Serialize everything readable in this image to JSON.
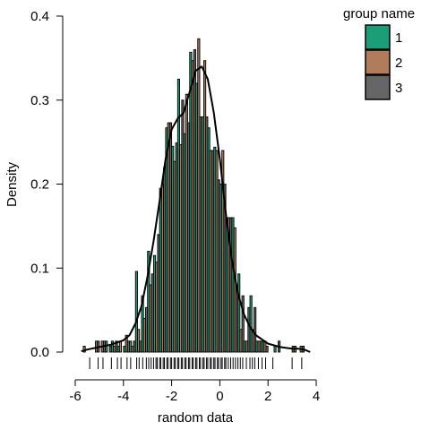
{
  "chart_data": {
    "type": "bar",
    "subtype": "histogram with density curve and rug",
    "title": "",
    "xlabel": "random data",
    "ylabel": "Density",
    "xlim": [
      -6,
      4
    ],
    "ylim": [
      0,
      0.4
    ],
    "xticks": [
      -6,
      -4,
      -2,
      0,
      2,
      4
    ],
    "yticks": [
      0.0,
      0.1,
      0.2,
      0.3,
      0.4
    ],
    "ytick_labels": [
      "0.0",
      "0.1",
      "0.2",
      "0.3",
      "0.4"
    ],
    "grid": false,
    "legend": {
      "title": "group name",
      "placement": "top-right",
      "entries": [
        {
          "label": "1",
          "color": "#1b9e77"
        },
        {
          "label": "2",
          "color": "#b07c5c"
        },
        {
          "label": "3",
          "color": "#666666"
        }
      ]
    },
    "bins": [
      {
        "x0": -5.75,
        "x1": -5.5,
        "values": [
          0.0,
          0.007,
          0.0
        ]
      },
      {
        "x0": -5.5,
        "x1": -5.25,
        "values": [
          0.0,
          0.0,
          0.0
        ]
      },
      {
        "x0": -5.25,
        "x1": -5.0,
        "values": [
          0.0,
          0.013,
          0.013
        ]
      },
      {
        "x0": -5.0,
        "x1": -4.75,
        "values": [
          0.0,
          0.013,
          0.013
        ]
      },
      {
        "x0": -4.75,
        "x1": -4.5,
        "values": [
          0.013,
          0.0,
          0.007
        ]
      },
      {
        "x0": -4.5,
        "x1": -4.25,
        "values": [
          0.013,
          0.007,
          0.013
        ]
      },
      {
        "x0": -4.25,
        "x1": -4.0,
        "values": [
          0.007,
          0.013,
          0.0
        ]
      },
      {
        "x0": -4.0,
        "x1": -3.75,
        "values": [
          0.007,
          0.02,
          0.013
        ]
      },
      {
        "x0": -3.75,
        "x1": -3.5,
        "values": [
          0.013,
          0.007,
          0.013
        ]
      },
      {
        "x0": -3.5,
        "x1": -3.25,
        "values": [
          0.096,
          0.027,
          0.013
        ]
      },
      {
        "x0": -3.25,
        "x1": -3.0,
        "values": [
          0.067,
          0.04,
          0.053
        ]
      },
      {
        "x0": -3.0,
        "x1": -2.75,
        "values": [
          0.12,
          0.08,
          0.093
        ]
      },
      {
        "x0": -2.75,
        "x1": -2.5,
        "values": [
          0.115,
          0.107,
          0.14
        ]
      },
      {
        "x0": -2.5,
        "x1": -2.25,
        "values": [
          0.195,
          0.2,
          0.22
        ]
      },
      {
        "x0": -2.25,
        "x1": -2.0,
        "values": [
          0.267,
          0.273,
          0.273
        ]
      },
      {
        "x0": -2.0,
        "x1": -1.75,
        "values": [
          0.245,
          0.227,
          0.249
        ]
      },
      {
        "x0": -1.75,
        "x1": -1.5,
        "values": [
          0.325,
          0.247,
          0.3
        ]
      },
      {
        "x0": -1.5,
        "x1": -1.25,
        "values": [
          0.26,
          0.307,
          0.273
        ]
      },
      {
        "x0": -1.25,
        "x1": -1.0,
        "values": [
          0.357,
          0.347,
          0.36
        ]
      },
      {
        "x0": -1.0,
        "x1": -0.75,
        "values": [
          0.32,
          0.373,
          0.28
        ]
      },
      {
        "x0": -0.75,
        "x1": -0.5,
        "values": [
          0.28,
          0.347,
          0.28
        ]
      },
      {
        "x0": -0.5,
        "x1": -0.25,
        "values": [
          0.267,
          0.24,
          0.24
        ]
      },
      {
        "x0": -0.25,
        "x1": 0.0,
        "values": [
          0.244,
          0.24,
          0.205
        ]
      },
      {
        "x0": 0.0,
        "x1": 0.25,
        "values": [
          0.2,
          0.24,
          0.2
        ]
      },
      {
        "x0": 0.25,
        "x1": 0.5,
        "values": [
          0.16,
          0.16,
          0.16
        ]
      },
      {
        "x0": 0.5,
        "x1": 0.75,
        "values": [
          0.16,
          0.148,
          0.08
        ]
      },
      {
        "x0": 0.75,
        "x1": 1.0,
        "values": [
          0.093,
          0.027,
          0.067
        ]
      },
      {
        "x0": 1.0,
        "x1": 1.25,
        "values": [
          0.013,
          0.013,
          0.053
        ]
      },
      {
        "x0": 1.25,
        "x1": 1.5,
        "values": [
          0.067,
          0.027,
          0.053
        ]
      },
      {
        "x0": 1.5,
        "x1": 1.75,
        "values": [
          0.013,
          0.013,
          0.013
        ]
      },
      {
        "x0": 1.75,
        "x1": 2.0,
        "values": [
          0.013,
          0.013,
          0.007
        ]
      },
      {
        "x0": 2.0,
        "x1": 2.25,
        "values": [
          0.0,
          0.0,
          0.0
        ]
      },
      {
        "x0": 2.25,
        "x1": 2.5,
        "values": [
          0.007,
          0.0,
          0.013
        ]
      },
      {
        "x0": 2.5,
        "x1": 2.75,
        "values": [
          0.0,
          0.0,
          0.0
        ]
      },
      {
        "x0": 2.75,
        "x1": 3.0,
        "values": [
          0.0,
          0.0,
          0.0
        ]
      },
      {
        "x0": 3.0,
        "x1": 3.25,
        "values": [
          0.007,
          0.007,
          0.0
        ]
      },
      {
        "x0": 3.25,
        "x1": 3.5,
        "values": [
          0.0,
          0.007,
          0.007
        ]
      }
    ],
    "density_curve": {
      "x": [
        -5.75,
        -5.5,
        -5.0,
        -4.5,
        -4.0,
        -3.75,
        -3.5,
        -3.25,
        -3.0,
        -2.75,
        -2.5,
        -2.25,
        -2.0,
        -1.75,
        -1.5,
        -1.25,
        -1.0,
        -0.75,
        -0.5,
        -0.25,
        0.0,
        0.25,
        0.5,
        0.75,
        1.0,
        1.25,
        1.5,
        2.0,
        2.5,
        3.0,
        3.25,
        3.5,
        3.75
      ],
      "y": [
        0.001,
        0.003,
        0.006,
        0.009,
        0.014,
        0.02,
        0.034,
        0.055,
        0.09,
        0.132,
        0.18,
        0.23,
        0.265,
        0.278,
        0.285,
        0.31,
        0.335,
        0.34,
        0.325,
        0.285,
        0.23,
        0.165,
        0.11,
        0.07,
        0.045,
        0.03,
        0.02,
        0.01,
        0.006,
        0.004,
        0.004,
        0.003,
        0.0
      ]
    },
    "rug": [
      -5.4,
      -5.05,
      -4.85,
      -4.5,
      -4.25,
      -4.1,
      -3.85,
      -3.7,
      -3.45,
      -3.35,
      -3.2,
      -3.05,
      -2.95,
      -2.85,
      -2.75,
      -2.65,
      -2.6,
      -2.5,
      -2.45,
      -2.35,
      -2.3,
      -2.2,
      -2.15,
      -2.05,
      -2.0,
      -1.9,
      -1.85,
      -1.75,
      -1.7,
      -1.6,
      -1.55,
      -1.45,
      -1.4,
      -1.3,
      -1.25,
      -1.15,
      -1.1,
      -1.0,
      -0.95,
      -0.85,
      -0.8,
      -0.7,
      -0.65,
      -0.55,
      -0.5,
      -0.4,
      -0.35,
      -0.25,
      -0.2,
      -0.1,
      -0.05,
      0.05,
      0.1,
      0.2,
      0.25,
      0.35,
      0.45,
      0.55,
      0.65,
      0.75,
      0.85,
      0.95,
      1.1,
      1.25,
      1.35,
      1.45,
      1.6,
      1.75,
      1.9,
      2.2,
      3.0,
      3.4
    ]
  }
}
